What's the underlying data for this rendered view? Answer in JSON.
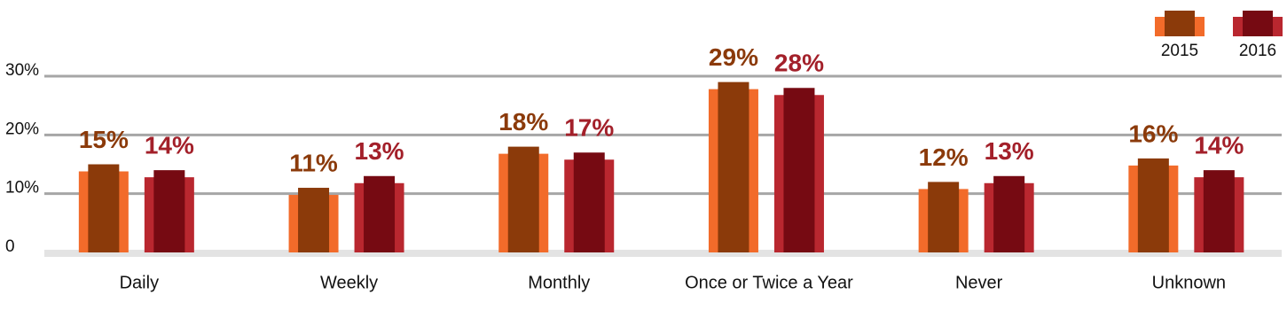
{
  "chart_data": {
    "type": "bar",
    "categories": [
      "Daily",
      "Weekly",
      "Monthly",
      "Once or Twice a Year",
      "Never",
      "Unknown"
    ],
    "series": [
      {
        "name": "2015",
        "color": "#8b3a0a",
        "back_color": "#f26b2a",
        "values": [
          15,
          11,
          18,
          29,
          12,
          16
        ],
        "value_labels": [
          "15%",
          "11%",
          "18%",
          "29%",
          "12%",
          "16%"
        ]
      },
      {
        "name": "2016",
        "color": "#760a12",
        "back_color": "#b9272f",
        "values": [
          14,
          13,
          17,
          28,
          13,
          14
        ],
        "value_labels": [
          "14%",
          "13%",
          "17%",
          "28%",
          "13%",
          "14%"
        ]
      }
    ],
    "ylim": [
      0,
      30
    ],
    "yticks": [
      0,
      {
        "value": 10,
        "label": "10%"
      },
      {
        "value": 20,
        "label": "20%"
      },
      {
        "value": 30,
        "label": "30%"
      }
    ],
    "grid": true,
    "legend": "top-right"
  }
}
